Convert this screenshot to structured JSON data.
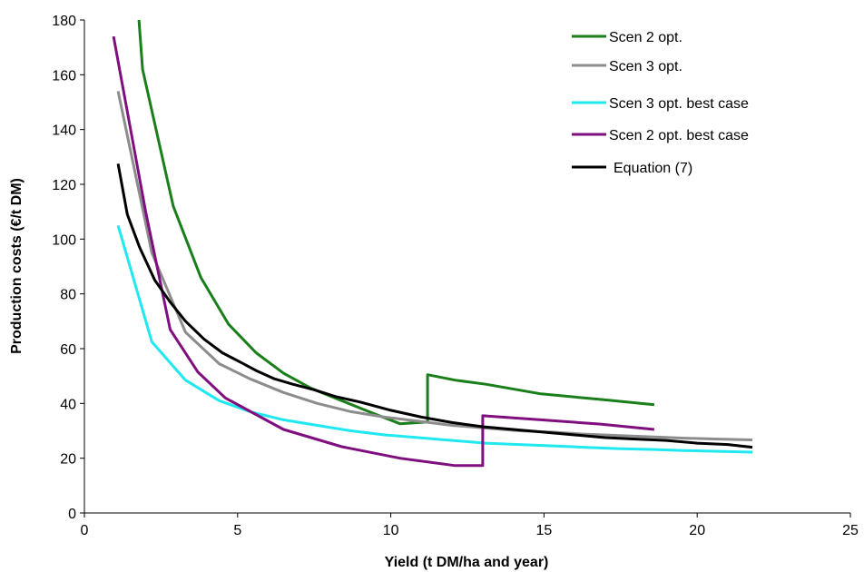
{
  "chart_data": {
    "type": "line",
    "xlabel": "Yield (t DM/ha and year)",
    "ylabel": "Production costs (€/t DM)",
    "xlim": [
      0,
      25
    ],
    "ylim": [
      0,
      180
    ],
    "xticks": [
      0,
      5,
      10,
      15,
      20,
      25
    ],
    "yticks": [
      0,
      20,
      40,
      60,
      80,
      100,
      120,
      140,
      160,
      180
    ],
    "grid": false,
    "legend_position": "top-right",
    "series": [
      {
        "name": "Scen 2 opt.",
        "color": "#1a7f1a",
        "points": [
          [
            1.78,
            180
          ],
          [
            1.9,
            162
          ],
          [
            2.9,
            112
          ],
          [
            3.8,
            86
          ],
          [
            4.7,
            69
          ],
          [
            5.6,
            58.5
          ],
          [
            6.5,
            51
          ],
          [
            7.4,
            45.5
          ],
          [
            8.4,
            41
          ],
          [
            9.4,
            36.5
          ],
          [
            10.3,
            32.6
          ],
          [
            11.2,
            33.2
          ],
          [
            11.2,
            50.5
          ],
          [
            12.1,
            48.5
          ],
          [
            13.1,
            47
          ],
          [
            14.9,
            43.5
          ],
          [
            16.8,
            41.5
          ],
          [
            18.6,
            39.5
          ]
        ]
      },
      {
        "name": "Scen 3 opt.",
        "color": "#8c8c8c",
        "points": [
          [
            1.1,
            154
          ],
          [
            2.2,
            95
          ],
          [
            3.3,
            66
          ],
          [
            4.4,
            54.5
          ],
          [
            5.4,
            49
          ],
          [
            6.5,
            44
          ],
          [
            7.6,
            40
          ],
          [
            8.7,
            37
          ],
          [
            9.8,
            35
          ],
          [
            10.9,
            33.5
          ],
          [
            12.0,
            32
          ],
          [
            13.1,
            31
          ],
          [
            14.2,
            30
          ],
          [
            15.3,
            29.5
          ],
          [
            16.3,
            28.8
          ],
          [
            17.4,
            28.3
          ],
          [
            18.5,
            27.8
          ],
          [
            19.6,
            27.3
          ],
          [
            20.7,
            27
          ],
          [
            21.8,
            26.7
          ]
        ]
      },
      {
        "name": "Scen 3 opt. best case",
        "color": "#20e8f0",
        "points": [
          [
            1.1,
            105
          ],
          [
            2.2,
            62.5
          ],
          [
            3.3,
            48.5
          ],
          [
            4.4,
            41
          ],
          [
            5.4,
            37
          ],
          [
            6.5,
            34
          ],
          [
            7.6,
            32
          ],
          [
            8.7,
            30
          ],
          [
            9.8,
            28.5
          ],
          [
            10.9,
            27.5
          ],
          [
            12.0,
            26.5
          ],
          [
            13.1,
            25.5
          ],
          [
            14.2,
            25
          ],
          [
            15.3,
            24.5
          ],
          [
            16.3,
            24
          ],
          [
            17.4,
            23.5
          ],
          [
            18.5,
            23.2
          ],
          [
            19.6,
            22.8
          ],
          [
            20.7,
            22.5
          ],
          [
            21.8,
            22.2
          ]
        ]
      },
      {
        "name": "Scen 2 opt. best case",
        "color": "#7f0f7f",
        "points": [
          [
            0.95,
            174
          ],
          [
            2.0,
            110
          ],
          [
            2.8,
            67
          ],
          [
            3.7,
            51.5
          ],
          [
            4.6,
            42
          ],
          [
            6.5,
            30.5
          ],
          [
            8.4,
            24.2
          ],
          [
            10.3,
            20
          ],
          [
            12.1,
            17.3
          ],
          [
            13.0,
            17.3
          ],
          [
            13.0,
            35.5
          ],
          [
            14.9,
            34
          ],
          [
            16.8,
            32.5
          ],
          [
            17.7,
            31.5
          ],
          [
            18.6,
            30.5
          ]
        ]
      },
      {
        "name": "Equation (7)",
        "color": "#000000",
        "points": [
          [
            1.1,
            127.5
          ],
          [
            1.4,
            109
          ],
          [
            1.8,
            97
          ],
          [
            2.3,
            85
          ],
          [
            2.8,
            77
          ],
          [
            3.3,
            70
          ],
          [
            3.9,
            63.5
          ],
          [
            4.5,
            58.5
          ],
          [
            5.1,
            55
          ],
          [
            5.6,
            52
          ],
          [
            6.2,
            49
          ],
          [
            6.8,
            47
          ],
          [
            7.5,
            45
          ],
          [
            8.2,
            42.5
          ],
          [
            9.0,
            40.5
          ],
          [
            10.0,
            37.5
          ],
          [
            11.0,
            35
          ],
          [
            12.0,
            33
          ],
          [
            13.0,
            31.5
          ],
          [
            14.0,
            30.5
          ],
          [
            15.0,
            29.5
          ],
          [
            16.0,
            28.5
          ],
          [
            17.0,
            27.5
          ],
          [
            18.0,
            27
          ],
          [
            19.0,
            26.5
          ],
          [
            20.0,
            25.5
          ],
          [
            21.0,
            25
          ],
          [
            21.8,
            24
          ]
        ]
      }
    ]
  }
}
